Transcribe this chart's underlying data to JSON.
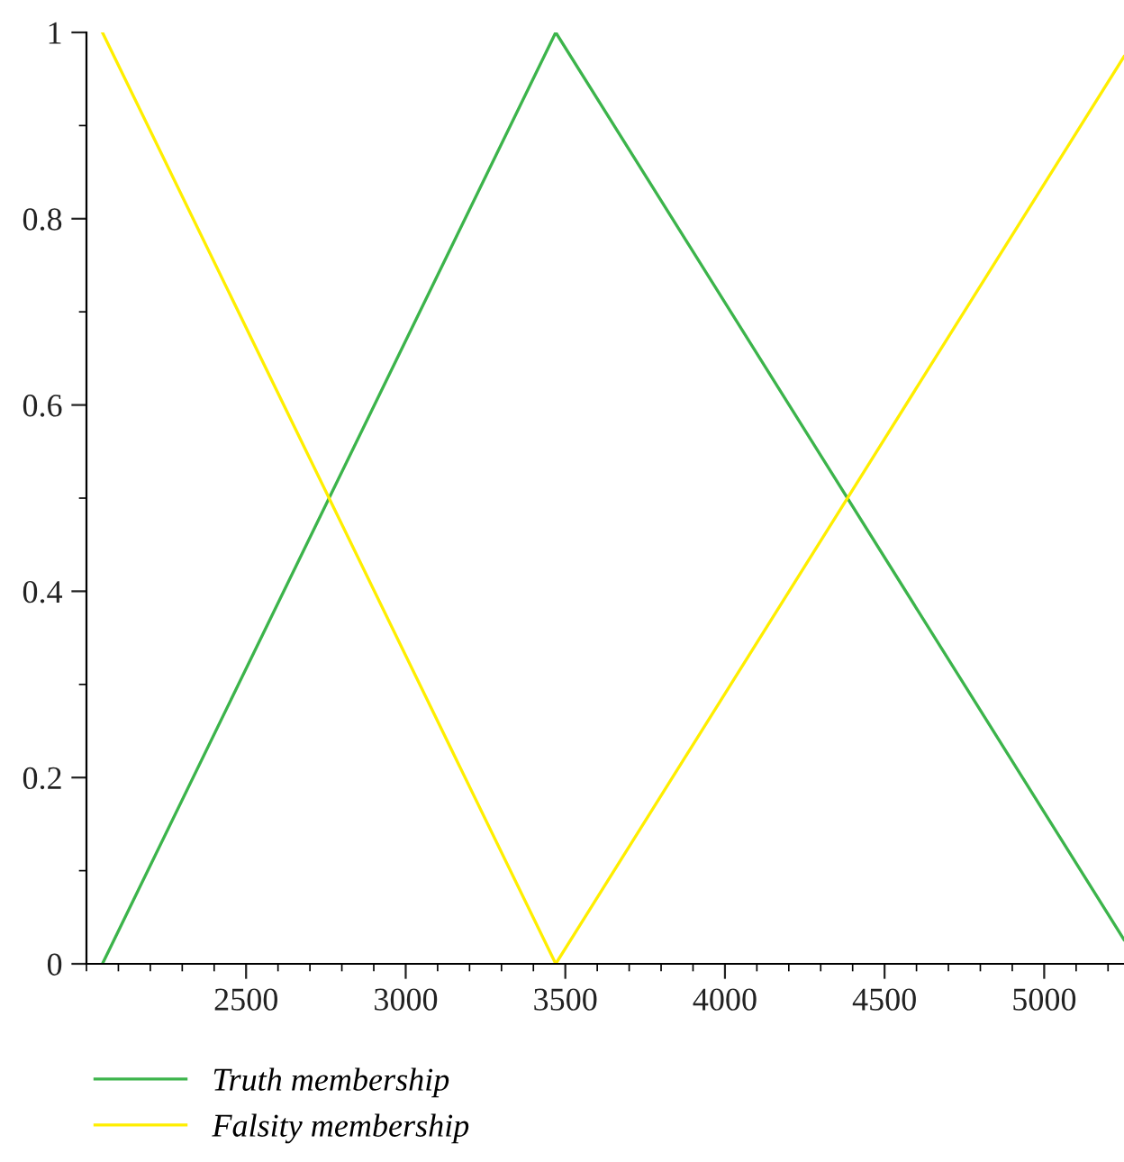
{
  "chart_data": {
    "type": "line",
    "xlim": [
      2000,
      5250
    ],
    "ylim": [
      0,
      1
    ],
    "xticks": [
      2500,
      3000,
      3500,
      4000,
      4500,
      5000
    ],
    "yticks": [
      0,
      0.2,
      0.4,
      0.6,
      0.8,
      1
    ],
    "grid": false,
    "legend": "bottom",
    "marker": "none",
    "line_style": "solid",
    "series": [
      {
        "name": "Truth membership",
        "color": "#3cb44b",
        "x": [
          2050,
          3470,
          5250
        ],
        "values": [
          0,
          1,
          0.026
        ]
      },
      {
        "name": "Falsity membership",
        "color": "#ffee00",
        "x": [
          2050,
          3470,
          5250
        ],
        "values": [
          1,
          0,
          0.974
        ]
      }
    ]
  }
}
